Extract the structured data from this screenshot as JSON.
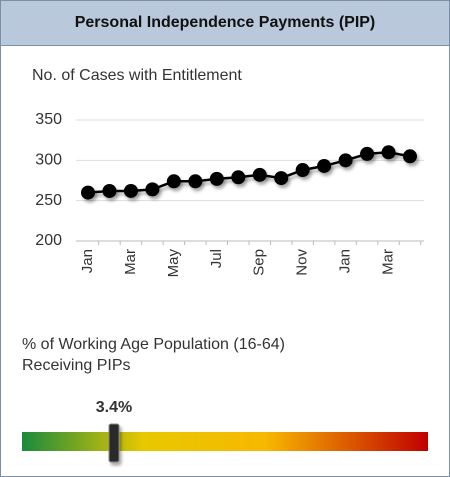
{
  "header": {
    "title": "Personal Independence Payments (PIP)"
  },
  "chart_data": {
    "type": "line",
    "title": "No. of Cases with Entitlement",
    "categories": [
      "Jan",
      null,
      "Mar",
      null,
      "May",
      null,
      "Jul",
      null,
      "Sep",
      null,
      "Nov",
      null,
      "Jan",
      null,
      "Mar",
      null
    ],
    "values": [
      260,
      262,
      262,
      264,
      274,
      274,
      277,
      279,
      282,
      278,
      288,
      293,
      300,
      308,
      310,
      305
    ],
    "color": "#000000",
    "ylim": [
      200,
      350
    ],
    "yticks": [
      200,
      250,
      300,
      350
    ],
    "grid": true
  },
  "gauge": {
    "label_lines": [
      "% of Working Age Population (16-64)",
      "Receiving PIPs"
    ],
    "value": 3.4,
    "value_label": "3.4%",
    "range": [
      0,
      15
    ]
  }
}
